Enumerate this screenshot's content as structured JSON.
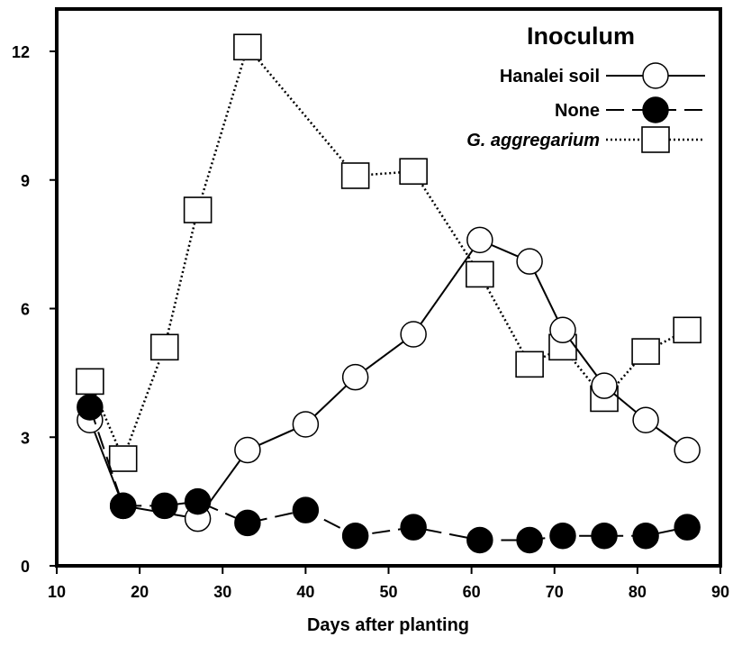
{
  "chart_data": {
    "type": "line",
    "xlabel": "Days after planting",
    "ylabel": "",
    "xlim": [
      10,
      90
    ],
    "ylim": [
      0,
      13
    ],
    "xticks": [
      10,
      20,
      30,
      40,
      50,
      60,
      70,
      80,
      90
    ],
    "yticks": [
      0,
      3,
      6,
      9,
      12
    ],
    "grid": false,
    "legend": {
      "title": "Inoculum",
      "placement": "top-right"
    },
    "series": [
      {
        "name": "Hanalei soil",
        "marker": "open-circle",
        "line": "solid",
        "italic": false,
        "x": [
          14,
          18,
          27,
          33,
          40,
          46,
          53,
          61,
          67,
          71,
          76,
          81,
          86
        ],
        "y": [
          3.4,
          1.4,
          1.1,
          2.7,
          3.3,
          4.4,
          5.4,
          7.6,
          7.1,
          5.5,
          4.2,
          3.4,
          2.7
        ]
      },
      {
        "name": "None",
        "marker": "filled-circle",
        "line": "dashed",
        "italic": false,
        "x": [
          14,
          18,
          23,
          27,
          33,
          40,
          46,
          53,
          61,
          67,
          71,
          76,
          81,
          86
        ],
        "y": [
          3.7,
          1.4,
          1.4,
          1.5,
          1.0,
          1.3,
          0.7,
          0.9,
          0.6,
          0.6,
          0.7,
          0.7,
          0.7,
          0.9
        ]
      },
      {
        "name": "G. aggregarium",
        "marker": "open-square",
        "line": "dotted",
        "italic": true,
        "x": [
          14,
          18,
          23,
          27,
          33,
          46,
          53,
          61,
          67,
          71,
          76,
          81,
          86
        ],
        "y": [
          4.3,
          2.5,
          5.1,
          8.3,
          12.1,
          9.1,
          9.2,
          6.8,
          4.7,
          5.1,
          3.9,
          5.0,
          5.5
        ]
      }
    ]
  }
}
